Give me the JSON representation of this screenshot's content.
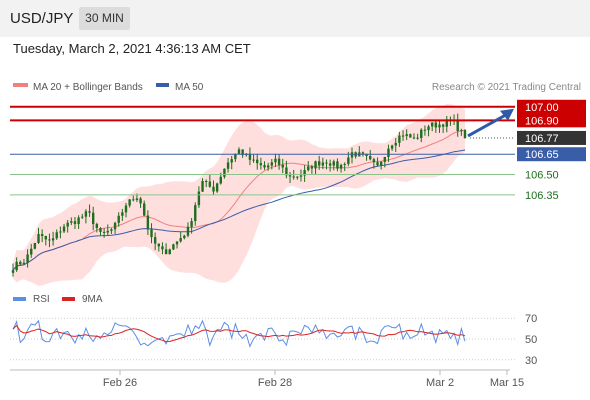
{
  "header": {
    "symbol": "USD/JPY",
    "timeframe": "30 MIN"
  },
  "timestamp": "Tuesday, March 2, 2021 4:36:13 AM CET",
  "legend": {
    "ma20": "MA 20 + Bollinger Bands",
    "ma50": "MA 50",
    "credit": "Research © 2021 Trading Central",
    "rsi": "RSI",
    "rsi_ma": "9MA"
  },
  "colors": {
    "candle": "#1e6e1e",
    "bollinger": "#ffd6d6",
    "ma20": "#f08080",
    "ma50": "#3a5da8",
    "resistance": "#cc0000",
    "support": "#8bc48b",
    "pivot": "#3a5da8",
    "arrow": "#2e5aa8",
    "rsi": "#5b8ee6",
    "rsi_ma": "#dd2222"
  },
  "chart_data": [
    {
      "type": "candlestick",
      "ylim": [
        105.7,
        107.05
      ],
      "x_ticks": [
        "Feb 26",
        "Feb 28",
        "Mar 2",
        "Mar 15"
      ],
      "levels": [
        {
          "value": 107.0,
          "label": "107.00",
          "kind": "resistance"
        },
        {
          "value": 106.9,
          "label": "106.90",
          "kind": "resistance"
        },
        {
          "value": 106.77,
          "label": "106.77",
          "kind": "current"
        },
        {
          "value": 106.65,
          "label": "106.65",
          "kind": "pivot"
        },
        {
          "value": 106.5,
          "label": "106.50",
          "kind": "support"
        },
        {
          "value": 106.35,
          "label": "106.35",
          "kind": "support"
        }
      ],
      "close_path": [
        105.82,
        105.87,
        106.05,
        106.0,
        106.12,
        106.16,
        106.22,
        106.05,
        106.1,
        106.28,
        106.35,
        106.02,
        105.92,
        106.0,
        106.1,
        106.45,
        106.39,
        106.58,
        106.68,
        106.6,
        106.55,
        106.6,
        106.48,
        106.5,
        106.58,
        106.6,
        106.55,
        106.66,
        106.63,
        106.55,
        106.72,
        106.8,
        106.76,
        106.86,
        106.87,
        106.9,
        106.77
      ],
      "n_candles": 125
    },
    {
      "type": "line",
      "series": [
        {
          "name": "RSI"
        },
        {
          "name": "9MA"
        }
      ],
      "ylim": [
        25,
        75
      ],
      "y_ticks": [
        70,
        50,
        30
      ]
    }
  ]
}
